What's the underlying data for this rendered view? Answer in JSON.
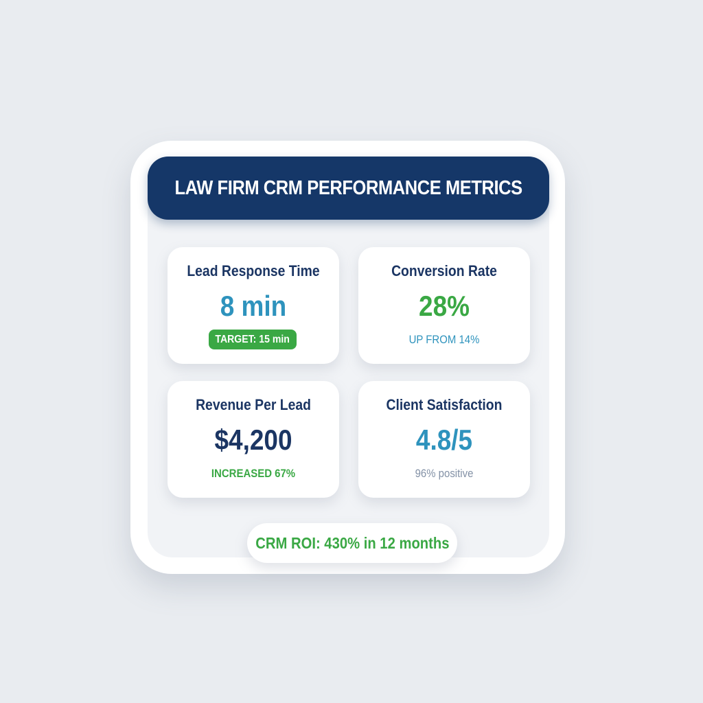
{
  "header": {
    "title": "LAW FIRM CRM PERFORMANCE METRICS"
  },
  "metrics": [
    {
      "title": "Lead Response Time",
      "value": "8 min",
      "detail": "TARGET: 15 min",
      "value_color": "#2e93bd",
      "detail_color": "#ffffff"
    },
    {
      "title": "Conversion Rate",
      "value": "28%",
      "detail": "UP FROM 14%",
      "value_color": "#3aa844",
      "detail_color": "#2e93bd"
    },
    {
      "title": "Revenue Per Lead",
      "value": "$4,200",
      "detail": "INCREASED 67%",
      "value_color": "#1b3563",
      "detail_color": "#3aa844"
    },
    {
      "title": "Client Satisfaction",
      "value": "4.8/5",
      "detail": "96% positive",
      "value_color": "#2e93bd",
      "detail_color": "#8391a6"
    }
  ],
  "footer": {
    "roi": "CRM ROI: 430% in 12 months"
  },
  "colors": {
    "header_bg": "#153768",
    "accent_green": "#3aa844",
    "accent_blue": "#2e93bd"
  }
}
